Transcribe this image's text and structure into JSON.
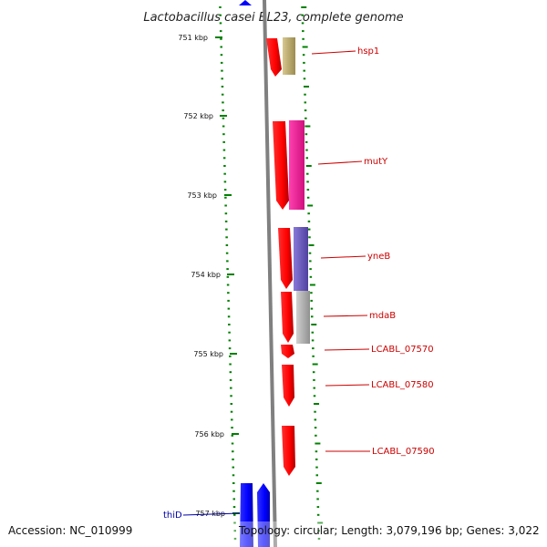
{
  "title": "Lactobacillus casei BL23, complete genome",
  "footer": {
    "accession": "Accession: NC_010999",
    "summary": "Topology: circular; Length: 3,079,196 bp; Genes: 3,022"
  },
  "ticks": [
    "751 kbp",
    "752 kbp",
    "753 kbp",
    "754 kbp",
    "755 kbp",
    "756 kbp",
    "757 kbp"
  ],
  "genes": [
    {
      "label": "hsp1",
      "strand": "forward",
      "color": "#c8b878"
    },
    {
      "label": "mutY",
      "strand": "forward",
      "color": "#ff1a9c"
    },
    {
      "label": "yneB",
      "strand": "forward",
      "color": "#7060c0"
    },
    {
      "label": "mdaB",
      "strand": "forward",
      "color": "#b0b0b0"
    },
    {
      "label": "LCABL_07570",
      "strand": "forward",
      "color": "#ff0000"
    },
    {
      "label": "LCABL_07580",
      "strand": "forward",
      "color": "#ff0000"
    },
    {
      "label": "LCABL_07590",
      "strand": "forward",
      "color": "#ff0000"
    },
    {
      "label": "thiD",
      "strand": "reverse",
      "color": "#0000ff"
    }
  ],
  "colors": {
    "forward_strand": "#ff0000",
    "reverse_strand": "#0000ff",
    "backbone": "#808080",
    "ticks": "#008000",
    "label_forward": "#cc0000",
    "label_reverse": "#0000aa"
  }
}
